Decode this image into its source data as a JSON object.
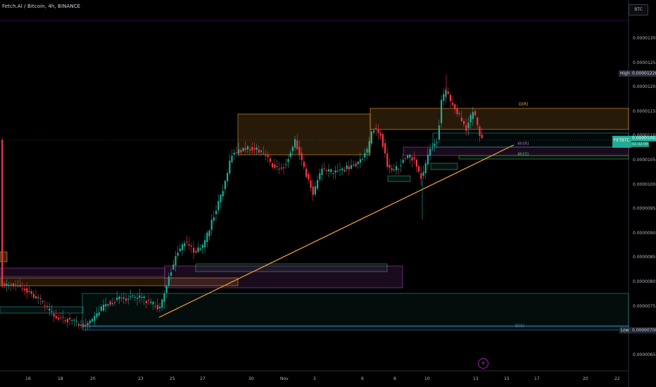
{
  "header": {
    "title": "Fetch.AI / Bitcoin, 4h, BINANCE",
    "currency": "BTC"
  },
  "price_axis": {
    "labels": [
      "0.00001300",
      "0.00001250",
      "0.00001200",
      "0.00001150",
      "0.00001100",
      "0.00001050",
      "0.00001000",
      "0.00000950",
      "0.00000900",
      "0.00000850",
      "0.00000800",
      "0.00000750",
      "0.00000700",
      "0.00000650"
    ],
    "high_label": "High",
    "high_value": "0.00001226",
    "low_label": "Low",
    "low_value": "0.00000700",
    "current_symbol": "FETBTC",
    "current_value": "0.00001092",
    "countdown": "02:32:09"
  },
  "time_axis": {
    "labels": [
      "16",
      "18",
      "20",
      "23",
      "25",
      "27",
      "30",
      "Nov",
      "3",
      "6",
      "8",
      "10",
      "13",
      "15",
      "17",
      "20",
      "22"
    ]
  },
  "zone_labels": {
    "d": "D(R)",
    "four_h_r": "4h(R)",
    "four_h_s": "4h(S)",
    "low_zone": "D(S)"
  },
  "colors": {
    "bull": "#22ab94",
    "bear": "#f23645",
    "orange": "#f7a33b",
    "purple": "#ab47bc",
    "teal": "#26a69a"
  },
  "chart_data": {
    "type": "candlestick",
    "symbol": "FETBTC",
    "interval": "4h",
    "exchange": "BINANCE",
    "y_range": [
      6.2e-06,
      1.33e-05
    ],
    "trendline": {
      "from": [
        7.26e-06,
        "23"
      ],
      "to": [
        1.081e-05,
        "15"
      ]
    },
    "zones": [
      {
        "label": "D(R)",
        "top": 1.155e-05,
        "bottom": 1.065e-05
      },
      {
        "label": "D(R)",
        "top": 1.155e-05,
        "bottom": 1.11e-05
      },
      {
        "label": "4h(R)",
        "top": 1.078e-05,
        "bottom": 1.058e-05
      },
      {
        "label": "4h(S)",
        "top": 1.062e-05,
        "bottom": 1.05e-05
      },
      {
        "label": "D(S)",
        "top": 7.76e-06,
        "bottom": 7.08e-06
      }
    ]
  }
}
